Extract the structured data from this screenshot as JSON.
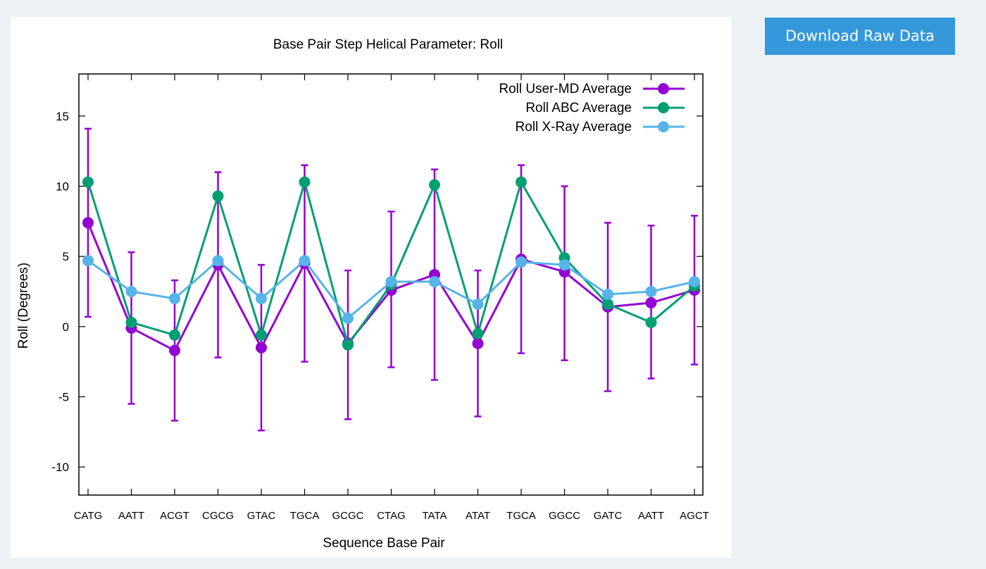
{
  "download_button": {
    "label": "Download Raw Data"
  },
  "colors": {
    "user_md": "#9400d3",
    "abc": "#009e73",
    "xray": "#56b4e9",
    "axis": "#000000",
    "button": "#3498db"
  },
  "chart_data": {
    "type": "line",
    "title": "Base Pair Step Helical Parameter: Roll",
    "xlabel": "Sequence Base Pair",
    "ylabel": "Roll (Degrees)",
    "ylim": [
      -12,
      18
    ],
    "yticks": [
      -10,
      -5,
      0,
      5,
      10,
      15
    ],
    "grid": false,
    "legend_position": "top-right",
    "categories": [
      "CATG",
      "AATT",
      "ACGT",
      "CGCG",
      "GTAC",
      "TGCA",
      "GCGC",
      "CTAG",
      "TATA",
      "ATAT",
      "TGCA",
      "GGCC",
      "GATC",
      "AATT",
      "AGCT"
    ],
    "series": [
      {
        "name": "Roll User-MD Average",
        "color": "#9400d3",
        "values": [
          7.4,
          -0.1,
          -1.7,
          4.4,
          -1.5,
          4.5,
          -1.2,
          2.6,
          3.7,
          -1.2,
          4.8,
          3.9,
          1.4,
          1.7,
          2.6
        ],
        "error_low": [
          0.7,
          -5.5,
          -6.7,
          -2.2,
          -7.4,
          -2.5,
          -6.6,
          -2.9,
          -3.8,
          -6.4,
          -1.9,
          -2.4,
          -4.6,
          -3.7,
          -2.7
        ],
        "error_high": [
          14.1,
          5.3,
          3.3,
          11.0,
          4.4,
          11.5,
          4.0,
          8.2,
          11.2,
          4.0,
          11.5,
          10.0,
          7.4,
          7.2,
          7.9
        ]
      },
      {
        "name": "Roll ABC Average",
        "color": "#009e73",
        "values": [
          10.3,
          0.3,
          -0.6,
          9.3,
          -0.6,
          10.3,
          -1.3,
          3.0,
          10.1,
          -0.5,
          10.3,
          4.9,
          1.6,
          0.3,
          2.9
        ]
      },
      {
        "name": "Roll X-Ray Average",
        "color": "#56b4e9",
        "values": [
          4.7,
          2.5,
          2.0,
          4.7,
          2.0,
          4.7,
          0.6,
          3.2,
          3.2,
          1.6,
          4.6,
          4.4,
          2.3,
          2.5,
          3.2
        ]
      }
    ]
  }
}
